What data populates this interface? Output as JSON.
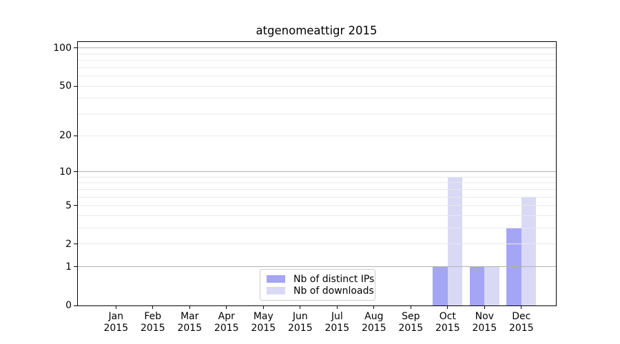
{
  "chart_data": {
    "type": "bar",
    "title": "atgenomeattigr 2015",
    "categories": [
      {
        "month": "Jan",
        "year": "2015"
      },
      {
        "month": "Feb",
        "year": "2015"
      },
      {
        "month": "Mar",
        "year": "2015"
      },
      {
        "month": "Apr",
        "year": "2015"
      },
      {
        "month": "May",
        "year": "2015"
      },
      {
        "month": "Jun",
        "year": "2015"
      },
      {
        "month": "Jul",
        "year": "2015"
      },
      {
        "month": "Aug",
        "year": "2015"
      },
      {
        "month": "Sep",
        "year": "2015"
      },
      {
        "month": "Oct",
        "year": "2015"
      },
      {
        "month": "Nov",
        "year": "2015"
      },
      {
        "month": "Dec",
        "year": "2015"
      }
    ],
    "series": [
      {
        "name": "Nb of distinct IPs",
        "color": "#a5a5f6",
        "values": [
          0,
          0,
          0,
          0,
          0,
          0,
          0,
          0,
          0,
          1,
          1,
          3
        ]
      },
      {
        "name": "Nb of downloads",
        "color": "#d9d9f6",
        "values": [
          0,
          0,
          0,
          0,
          0,
          0,
          0,
          0,
          0,
          9,
          1,
          6
        ]
      }
    ],
    "y_axis": {
      "scale": "log1p",
      "tick_values": [
        0,
        1,
        2,
        5,
        10,
        20,
        50,
        100
      ],
      "top_value": 113,
      "gridlines_dark": [
        1,
        10,
        100
      ],
      "gridlines_light": [
        2,
        3,
        4,
        5,
        6,
        7,
        8,
        9,
        20,
        30,
        40,
        50,
        60,
        70,
        80,
        90
      ]
    },
    "legend": {
      "position": "lower center-left"
    },
    "colors": {
      "grid_dark": "#b0b0b0",
      "grid_light": "#e9e9e9",
      "axis": "#000000",
      "background": "#ffffff"
    }
  }
}
